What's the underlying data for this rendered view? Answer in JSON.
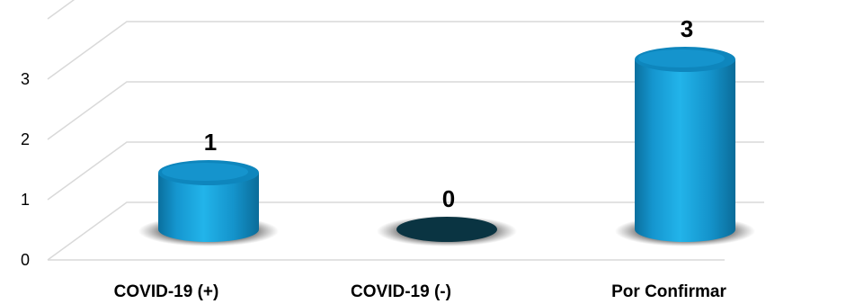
{
  "chart_data": {
    "type": "bar",
    "style": "3d-cylinder",
    "categories": [
      "COVID-19 (+)",
      "COVID-19 (-)",
      "Por Confirmar"
    ],
    "values": [
      1,
      0,
      3
    ],
    "data_labels": [
      "1",
      "0",
      "3"
    ],
    "y_ticks": [
      "0",
      "1",
      "2",
      "3"
    ],
    "ylim": [
      0,
      3.6
    ],
    "grid": true,
    "legend": "none",
    "colors": {
      "bar_body": "#1aa3d9",
      "bar_top": "#0e86bd",
      "bar_shadow": "#3a3a3a",
      "zero_bar": "#0a3442",
      "gridline": "#d9d9d9"
    }
  }
}
